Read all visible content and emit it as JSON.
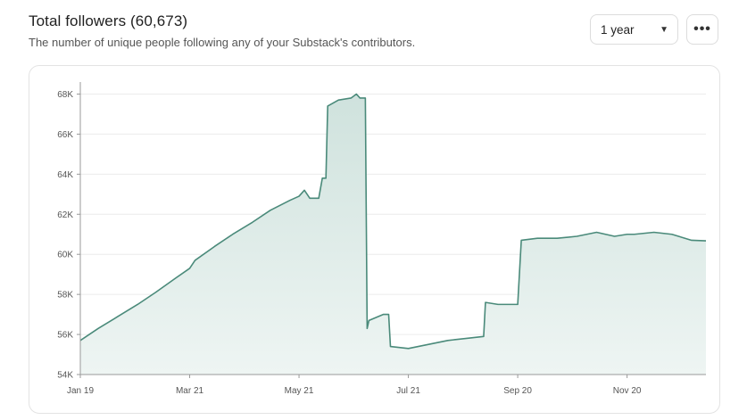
{
  "header": {
    "title": "Total followers (60,673)",
    "subtitle": "The number of unique people following any of your Substack's contributors."
  },
  "controls": {
    "range_value": "1 year",
    "more_label": "•••"
  },
  "colors": {
    "line": "#4a8a7a",
    "area_top": "#cfe2dd",
    "area_bottom": "#eef5f3",
    "grid": "#ececec"
  },
  "chart_data": {
    "type": "area",
    "title": "Total followers (60,673)",
    "xlabel": "",
    "ylabel": "",
    "x_tick_labels": [
      "Jan 19",
      "Mar 21",
      "May 21",
      "Jul 21",
      "Sep 20",
      "Nov 20"
    ],
    "y_tick_labels": [
      "54K",
      "56K",
      "58K",
      "60K",
      "62K",
      "64K",
      "66K",
      "68K"
    ],
    "y_ticks": [
      54000,
      56000,
      58000,
      60000,
      62000,
      64000,
      66000,
      68000
    ],
    "ylim": [
      54000,
      68600
    ],
    "grid": true,
    "series": [
      {
        "values": [
          {
            "x": "Jan 19",
            "y": 55700
          },
          {
            "x": "Jan 29",
            "y": 56300
          },
          {
            "x": "Feb 9",
            "y": 56900
          },
          {
            "x": "Feb 20",
            "y": 57500
          },
          {
            "x": "Mar 2",
            "y": 58100
          },
          {
            "x": "Mar 13",
            "y": 58800
          },
          {
            "x": "Mar 21",
            "y": 59300
          },
          {
            "x": "Mar 24",
            "y": 59700
          },
          {
            "x": "Apr 4",
            "y": 60400
          },
          {
            "x": "Apr 14",
            "y": 61000
          },
          {
            "x": "Apr 25",
            "y": 61600
          },
          {
            "x": "May 5",
            "y": 62200
          },
          {
            "x": "May 16",
            "y": 62700
          },
          {
            "x": "May 21",
            "y": 62900
          },
          {
            "x": "May 24",
            "y": 63200
          },
          {
            "x": "May 27",
            "y": 62800
          },
          {
            "x": "Jun 1",
            "y": 62800
          },
          {
            "x": "Jun 3",
            "y": 63800
          },
          {
            "x": "Jun 5",
            "y": 63800
          },
          {
            "x": "Jun 6",
            "y": 67400
          },
          {
            "x": "Jun 12",
            "y": 67700
          },
          {
            "x": "Jun 19",
            "y": 67800
          },
          {
            "x": "Jun 22",
            "y": 68000
          },
          {
            "x": "Jun 24",
            "y": 67800
          },
          {
            "x": "Jun 27",
            "y": 67800
          },
          {
            "x": "Jun 28",
            "y": 56300
          },
          {
            "x": "Jun 29",
            "y": 56700
          },
          {
            "x": "Jul 7",
            "y": 57000
          },
          {
            "x": "Jul 10",
            "y": 57000
          },
          {
            "x": "Jul 11",
            "y": 55400
          },
          {
            "x": "Jul 21",
            "y": 55300
          },
          {
            "x": "Aug 1",
            "y": 55500
          },
          {
            "x": "Aug 12",
            "y": 55700
          },
          {
            "x": "Aug 22",
            "y": 55800
          },
          {
            "x": "Sep 1",
            "y": 55900
          },
          {
            "x": "Sep 2",
            "y": 57600
          },
          {
            "x": "Sep 9",
            "y": 57500
          },
          {
            "x": "Sep 20",
            "y": 57500
          },
          {
            "x": "Sep 22",
            "y": 60700
          },
          {
            "x": "Oct 1",
            "y": 60800
          },
          {
            "x": "Oct 12",
            "y": 60800
          },
          {
            "x": "Oct 23",
            "y": 60900
          },
          {
            "x": "Nov 3",
            "y": 61100
          },
          {
            "x": "Nov 13",
            "y": 60900
          },
          {
            "x": "Nov 20",
            "y": 61000
          },
          {
            "x": "Nov 24",
            "y": 61000
          },
          {
            "x": "Dec 5",
            "y": 61100
          },
          {
            "x": "Dec 15",
            "y": 61000
          },
          {
            "x": "Dec 26",
            "y": 60700
          },
          {
            "x": "Jan 3",
            "y": 60673
          }
        ]
      }
    ]
  }
}
